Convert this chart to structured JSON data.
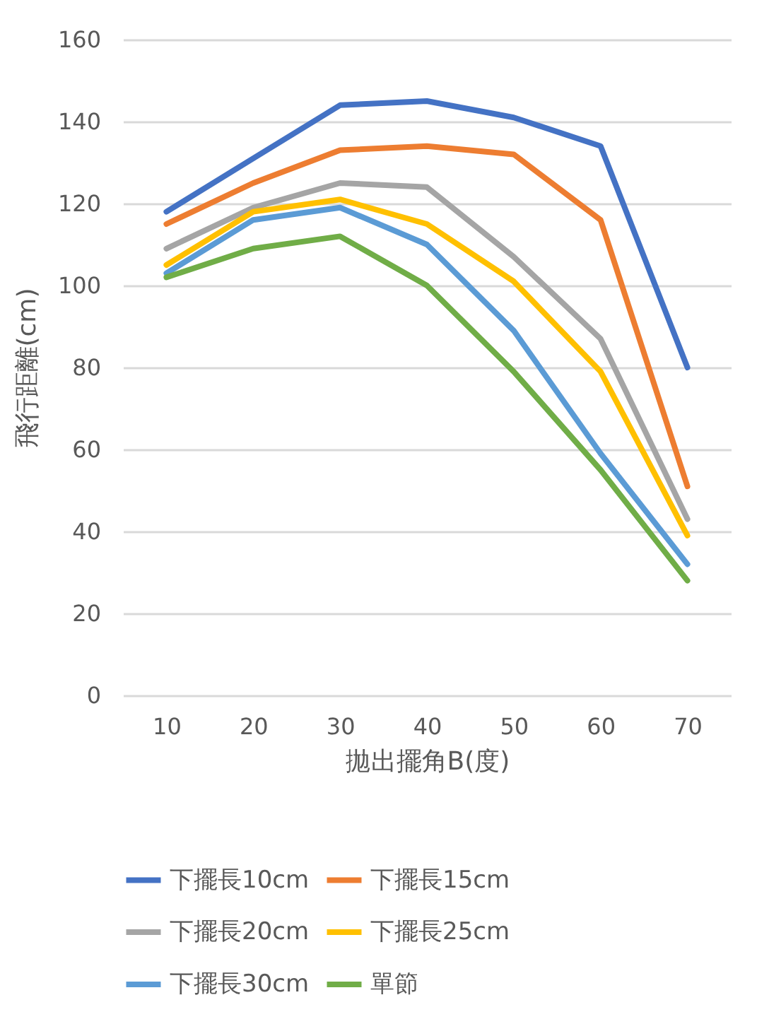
{
  "chart_data": {
    "type": "line",
    "xlabel": "拋出擺角B(度)",
    "ylabel": "飛行距離(cm)",
    "categories": [
      "10",
      "20",
      "30",
      "40",
      "50",
      "60",
      "70"
    ],
    "ylim": [
      0,
      160
    ],
    "yticks": [
      0,
      20,
      40,
      60,
      80,
      100,
      120,
      140,
      160
    ],
    "grid": "y",
    "legend": "bottom",
    "marker": "none",
    "line_style": "solid",
    "series": [
      {
        "name": "下擺長10cm",
        "color": "#4472c4",
        "values": [
          118,
          131,
          144,
          145,
          141,
          134,
          80
        ]
      },
      {
        "name": "下擺長15cm",
        "color": "#ed7d31",
        "values": [
          115,
          125,
          133,
          134,
          132,
          116,
          51
        ]
      },
      {
        "name": "下擺長20cm",
        "color": "#a5a5a5",
        "values": [
          109,
          119,
          125,
          124,
          107,
          87,
          43
        ]
      },
      {
        "name": "下擺長25cm",
        "color": "#ffc000",
        "values": [
          105,
          118,
          121,
          115,
          101,
          79,
          39
        ]
      },
      {
        "name": "下擺長30cm",
        "color": "#5b9bd5",
        "values": [
          103,
          116,
          119,
          110,
          89,
          59,
          32
        ]
      },
      {
        "name": "單節",
        "color": "#70ad47",
        "values": [
          102,
          109,
          112,
          100,
          79,
          55,
          28
        ]
      }
    ]
  }
}
